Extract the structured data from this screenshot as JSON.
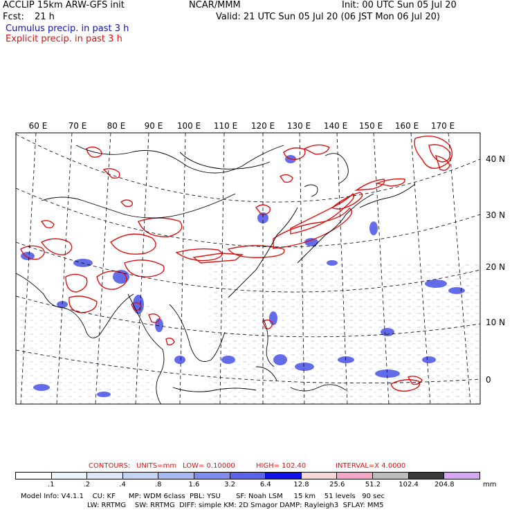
{
  "header": {
    "model_title": "ACCLIP 15km ARW-GFS init",
    "center": "NCAR/MMM",
    "init_time": "Init: 00 UTC Sun 05 Jul 20",
    "forecast_label": "Fcst:",
    "forecast_hours": "21 h",
    "valid_time": "Valid: 21 UTC Sun 05 Jul 20 (06 JST Mon 06 Jul 20)",
    "legend_cumulus": "Cumulus precip. in past 3 h",
    "legend_explicit": "Explicit precip. in past 3 h"
  },
  "colors": {
    "cumulus": "#1010c0",
    "explicit": "#e01010",
    "coast": "#000000",
    "grid": "#000000"
  },
  "map": {
    "longitude_labels": [
      "60 E",
      "70 E",
      "80 E",
      "90 E",
      "100 E",
      "110 E",
      "120 E",
      "130 E",
      "140 E",
      "150 E",
      "160 E",
      "170 E"
    ],
    "latitude_labels": [
      "40 N",
      "30 N",
      "20 N",
      "10 N",
      "0"
    ]
  },
  "contours": {
    "label": "CONTOURS:",
    "units": "UNITS=mm",
    "low": "LOW= 0.10000",
    "high": "HIGH= 102.40",
    "interval": "INTERVAL=X  4.0000"
  },
  "colorbar": {
    "levels": [
      ".1",
      ".2",
      ".4",
      ".8",
      "1.6",
      "3.2",
      "6.4",
      "12.8",
      "25.6",
      "51.2",
      "102.4",
      "204.8"
    ],
    "unit": "mm",
    "colors": [
      "#ffffff",
      "#eef2fb",
      "#dbe6f7",
      "#c4d4f4",
      "#a9b9f2",
      "#7f8cf0",
      "#5a62ee",
      "#1010e8",
      "#f6d6d8",
      "#f4a6c8",
      "#bcbcbc",
      "#3a3a3a",
      "#d6a8f4"
    ]
  },
  "model_info": {
    "line1": "Model Info: V4.1.1    CU: KF      MP: WDM 6class  PBL: YSU       SF: Noah LSM     15 km    51 levels   90 sec",
    "line2": "LW: RRTMG    SW: RRTMG  DIFF: simple KM: 2D Smagor DAMP: Rayleigh3  SFLAY: MM5"
  }
}
